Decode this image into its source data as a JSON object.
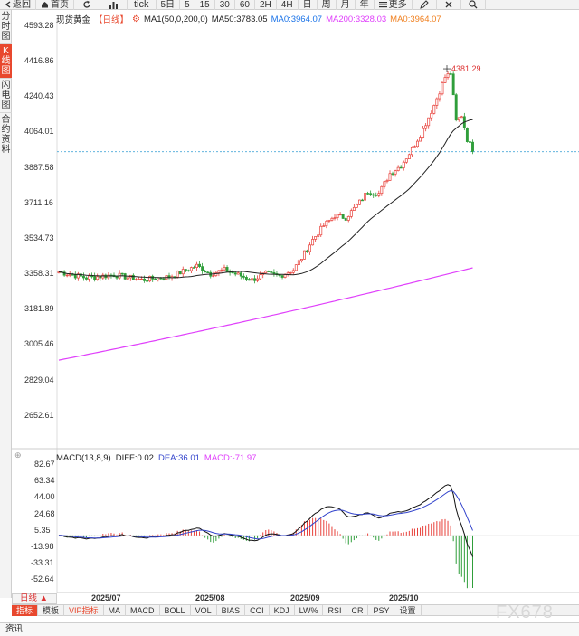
{
  "toolbar": {
    "back": "返回",
    "home": "首页",
    "tick": "tick",
    "periods": [
      "5日",
      "5",
      "15",
      "30",
      "60",
      "2H",
      "4H",
      "日",
      "周",
      "月",
      "年"
    ],
    "more": "更多"
  },
  "sidebar": [
    "分时图",
    "K线图",
    "闪电图",
    "合约资料"
  ],
  "legend": {
    "name": "现货黄金",
    "period": "【日线】",
    "ma1": "MA1(50,0,200,0)",
    "ma50": "MA50:3783.05",
    "ma0": "MA0:3964.07",
    "ma200": "MA200:3328.03",
    "ma0b": "MA0:3964.07"
  },
  "price_axis": [
    "4593.28",
    "4416.86",
    "4240.43",
    "4064.01",
    "3887.58",
    "3711.16",
    "3534.73",
    "3358.31",
    "3181.89",
    "3005.46",
    "2829.04",
    "2652.61"
  ],
  "high_label": "4381.29",
  "macd_legend": {
    "name": "MACD(13,8,9)",
    "diff": "DIFF:0.02",
    "dea": "DEA:36.01",
    "macd": "MACD:-71.97"
  },
  "macd_axis": [
    "82.67",
    "63.34",
    "44.00",
    "24.68",
    "5.35",
    "-13.98",
    "-33.31",
    "-52.64"
  ],
  "dates": [
    "2025/07",
    "2025/08",
    "2025/09",
    "2025/10"
  ],
  "period_button": "日线 ▲",
  "indicators": [
    "指标",
    "模板",
    "VIP指标",
    "MA",
    "MACD",
    "BOLL",
    "VOL",
    "BIAS",
    "CCI",
    "KDJ",
    "LW%",
    "RSI",
    "CR",
    "PSY",
    "设置"
  ],
  "status": "资讯",
  "watermark": "FX678",
  "colors": {
    "up": "#e8403a",
    "down": "#2f9e3a",
    "ma50": "#222222",
    "ma200": "#e040fb",
    "dea": "#3344cc",
    "accent": "#e8482e"
  }
}
